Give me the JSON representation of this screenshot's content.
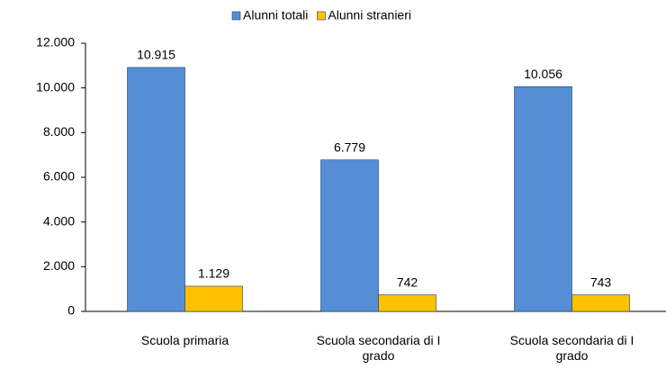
{
  "chart_data": {
    "type": "bar",
    "categories": [
      "Scuola primaria",
      "Scuola secondaria di I grado",
      "Scuola secondaria di I grado"
    ],
    "series": [
      {
        "name": "Alunni totali",
        "color": "#558ed5",
        "values": [
          10915,
          6779,
          10056
        ],
        "value_labels": [
          "10.915",
          "6.779",
          "10.056"
        ]
      },
      {
        "name": "Alunni stranieri",
        "color": "#ffc000",
        "values": [
          1129,
          742,
          743
        ],
        "value_labels": [
          "1.129",
          "742",
          "743"
        ]
      }
    ],
    "ylim": [
      0,
      12000
    ],
    "yticks": [
      0,
      {
        "value": 2000,
        "label": "2.000"
      },
      {
        "value": 4000,
        "label": "4.000"
      },
      {
        "value": 6000,
        "label": "6.000"
      },
      {
        "value": 8000,
        "label": "8.000"
      },
      {
        "value": 10000,
        "label": "10.000"
      },
      {
        "value": 12000,
        "label": "12.000"
      }
    ],
    "legend": "top"
  }
}
